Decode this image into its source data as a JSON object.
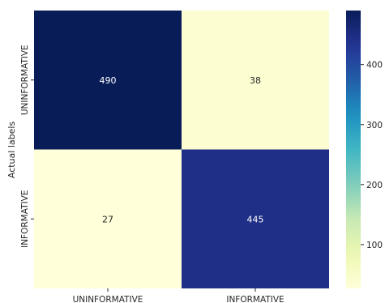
{
  "chart_data": {
    "type": "heatmap",
    "title": "",
    "xlabel": "",
    "ylabel": "Actual labels",
    "x_categories": [
      "UNINFORMATIVE",
      "INFORMATIVE"
    ],
    "y_categories": [
      "UNINFORMATIVE",
      "INFORMATIVE"
    ],
    "values": [
      [
        490,
        38
      ],
      [
        27,
        445
      ]
    ],
    "colormap": "YlGnBu",
    "colorbar": {
      "ticks": [
        100,
        200,
        300,
        400
      ],
      "min": 27,
      "max": 490
    },
    "colors": {
      "low": "#ffffd9",
      "high": "#081d58"
    }
  }
}
